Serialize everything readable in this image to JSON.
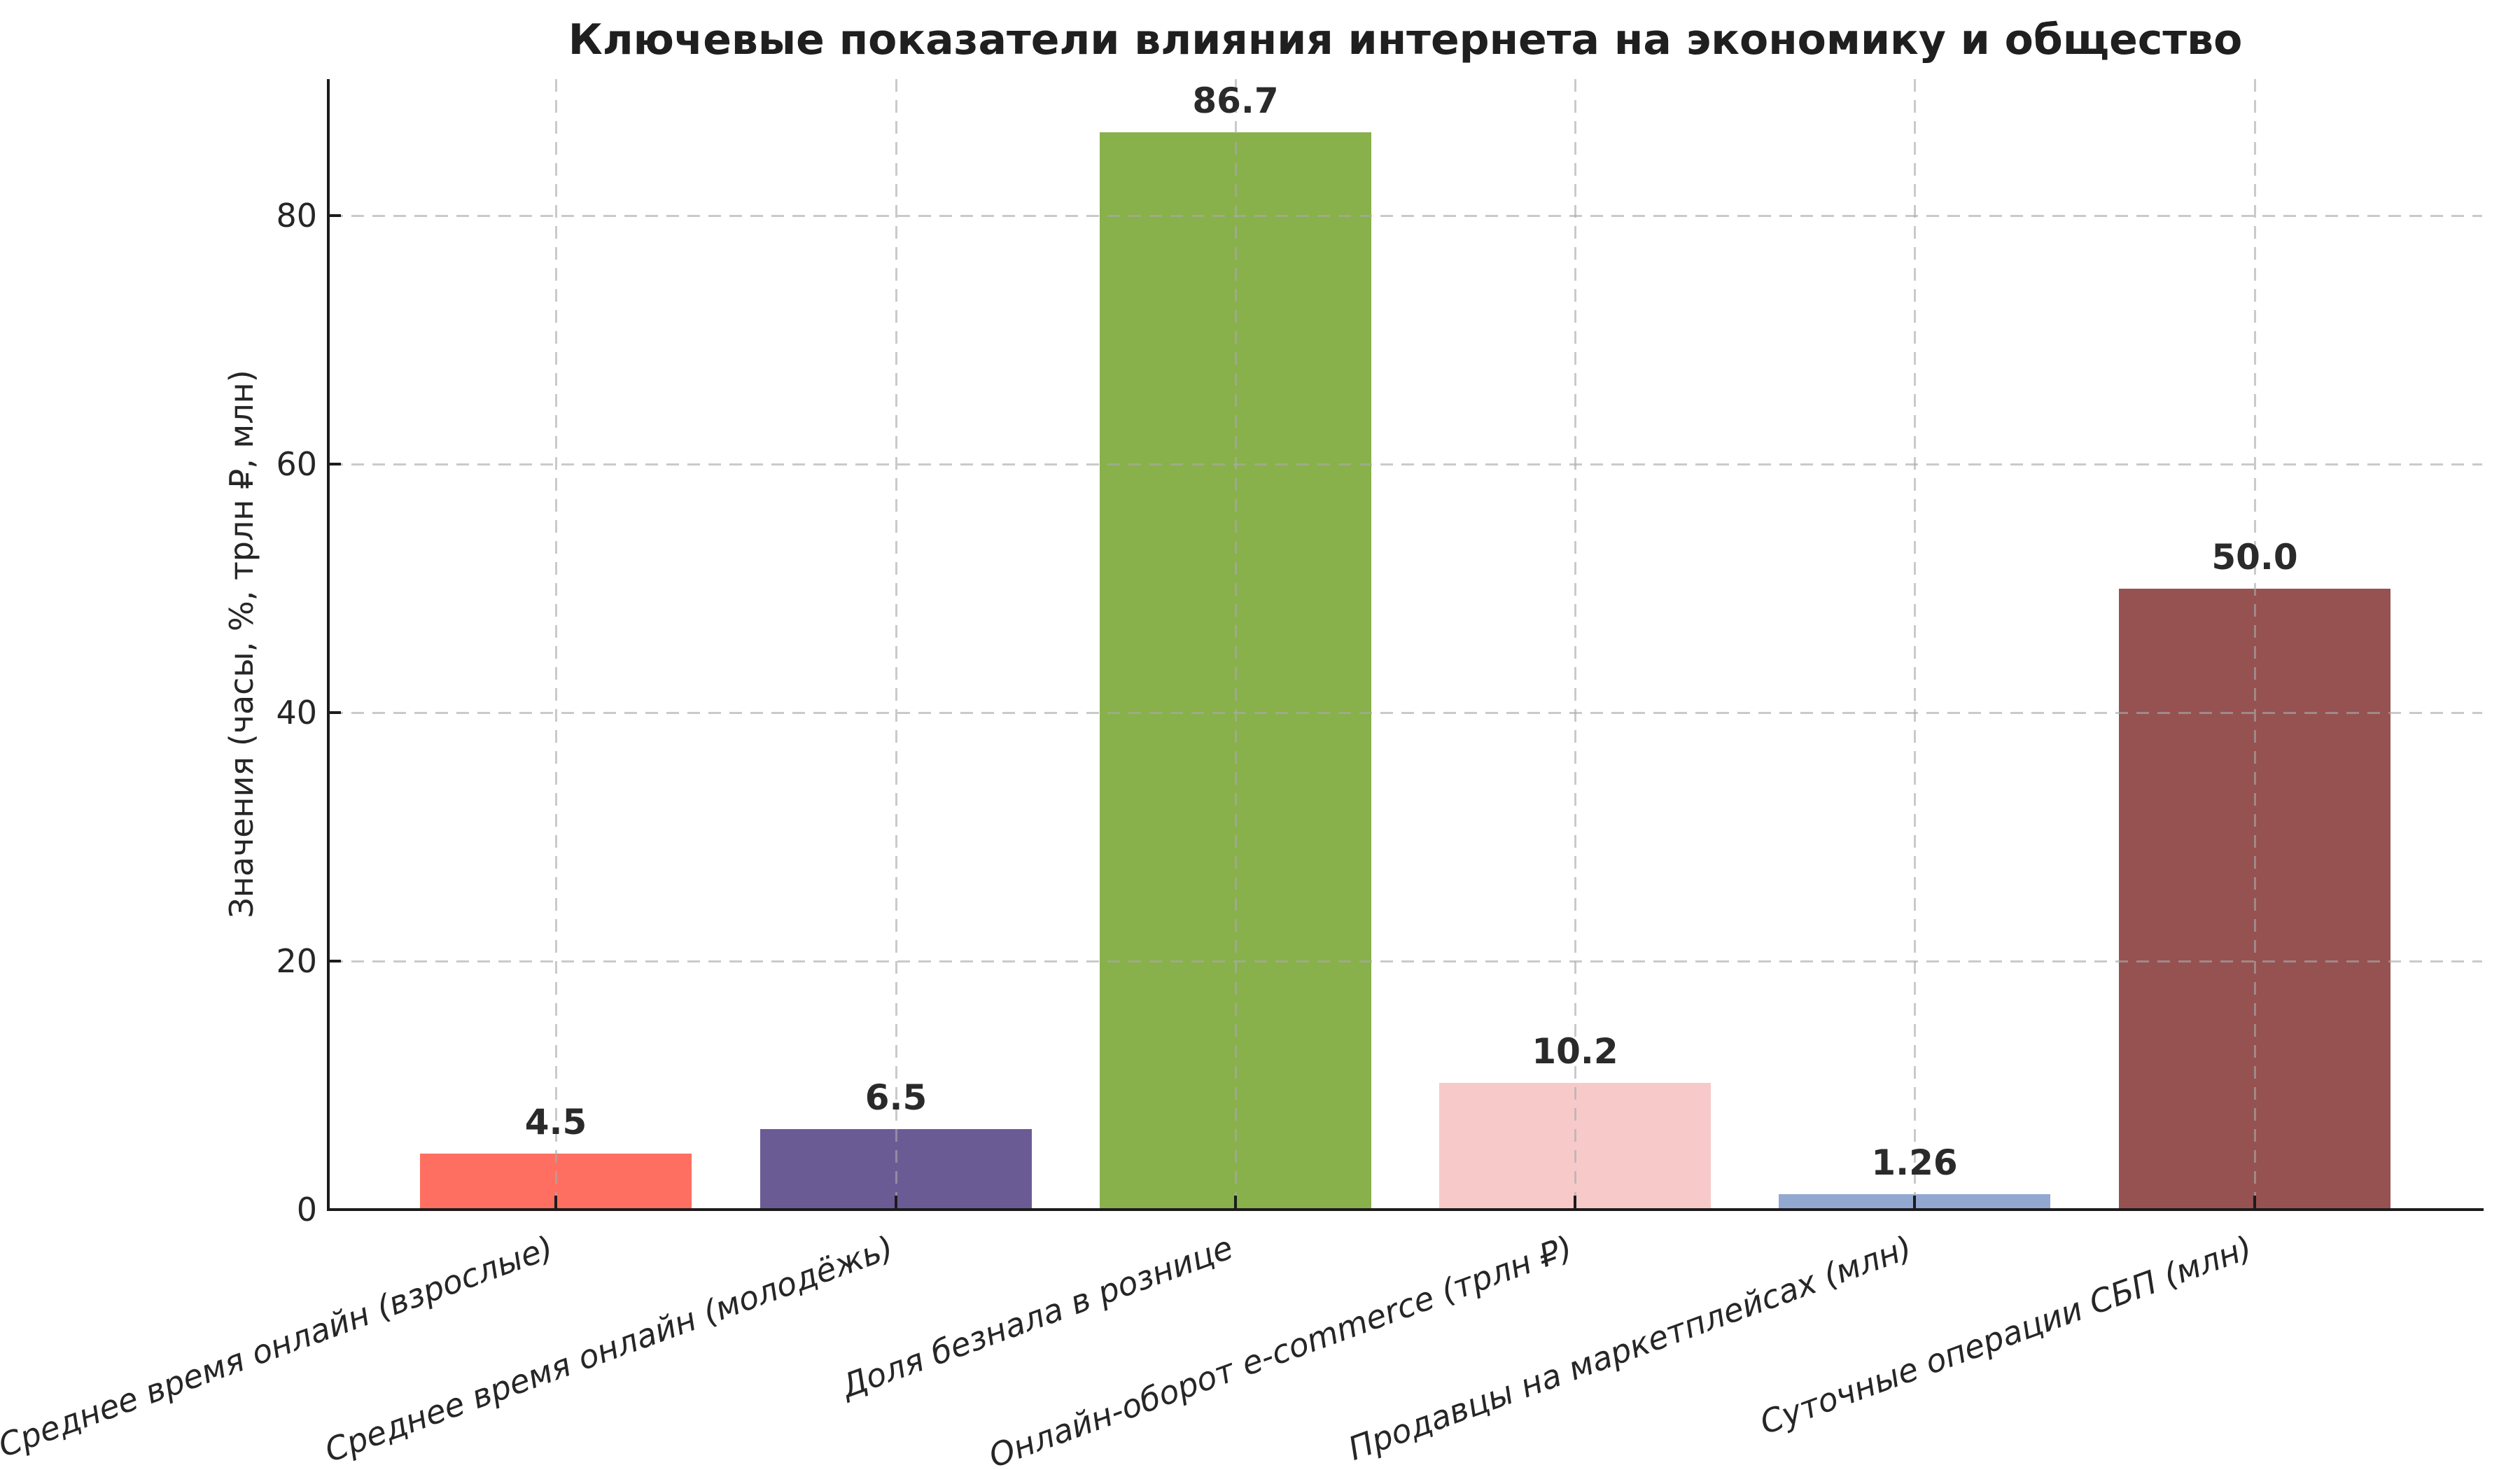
{
  "chart_data": {
    "type": "bar",
    "title": "Ключевые показатели влияния интернета на экономику и общество",
    "ylabel": "Значения (часы, %, трлн ₽, млн)",
    "xlabel": "",
    "categories": [
      "Среднее время онлайн (взрослые)",
      "Среднее время онлайн (молодёжь)",
      "Доля безнала в рознице",
      "Онлайн-оборот e-commerce (трлн ₽)",
      "Продавцы на маркетплейсах (млн)",
      "Суточные операции СБП (млн)"
    ],
    "values": [
      4.5,
      6.5,
      86.7,
      10.2,
      1.26,
      50.0
    ],
    "value_labels": [
      "4.5",
      "6.5",
      "86.7",
      "10.2",
      "1.26",
      "50.0"
    ],
    "bar_colors": [
      "#FF6F61",
      "#6B5B95",
      "#88B04B",
      "#F7CAC9",
      "#92A8D1",
      "#955251"
    ],
    "yticks": [
      0,
      20,
      40,
      60,
      80
    ],
    "ylim": [
      0,
      91.0
    ],
    "xlim_units": [
      -0.67,
      5.67
    ],
    "bar_width_units": 0.8,
    "x_tick_rotation_deg": 20,
    "grid": {
      "style": "dashed",
      "axis": "both",
      "color": "#aaaaaa",
      "over_bars": true
    },
    "styles": {
      "background": "#ffffff",
      "text_color": "#262626",
      "spine_color": "#1c1c1c",
      "title_color": "#1f1f1f"
    }
  }
}
